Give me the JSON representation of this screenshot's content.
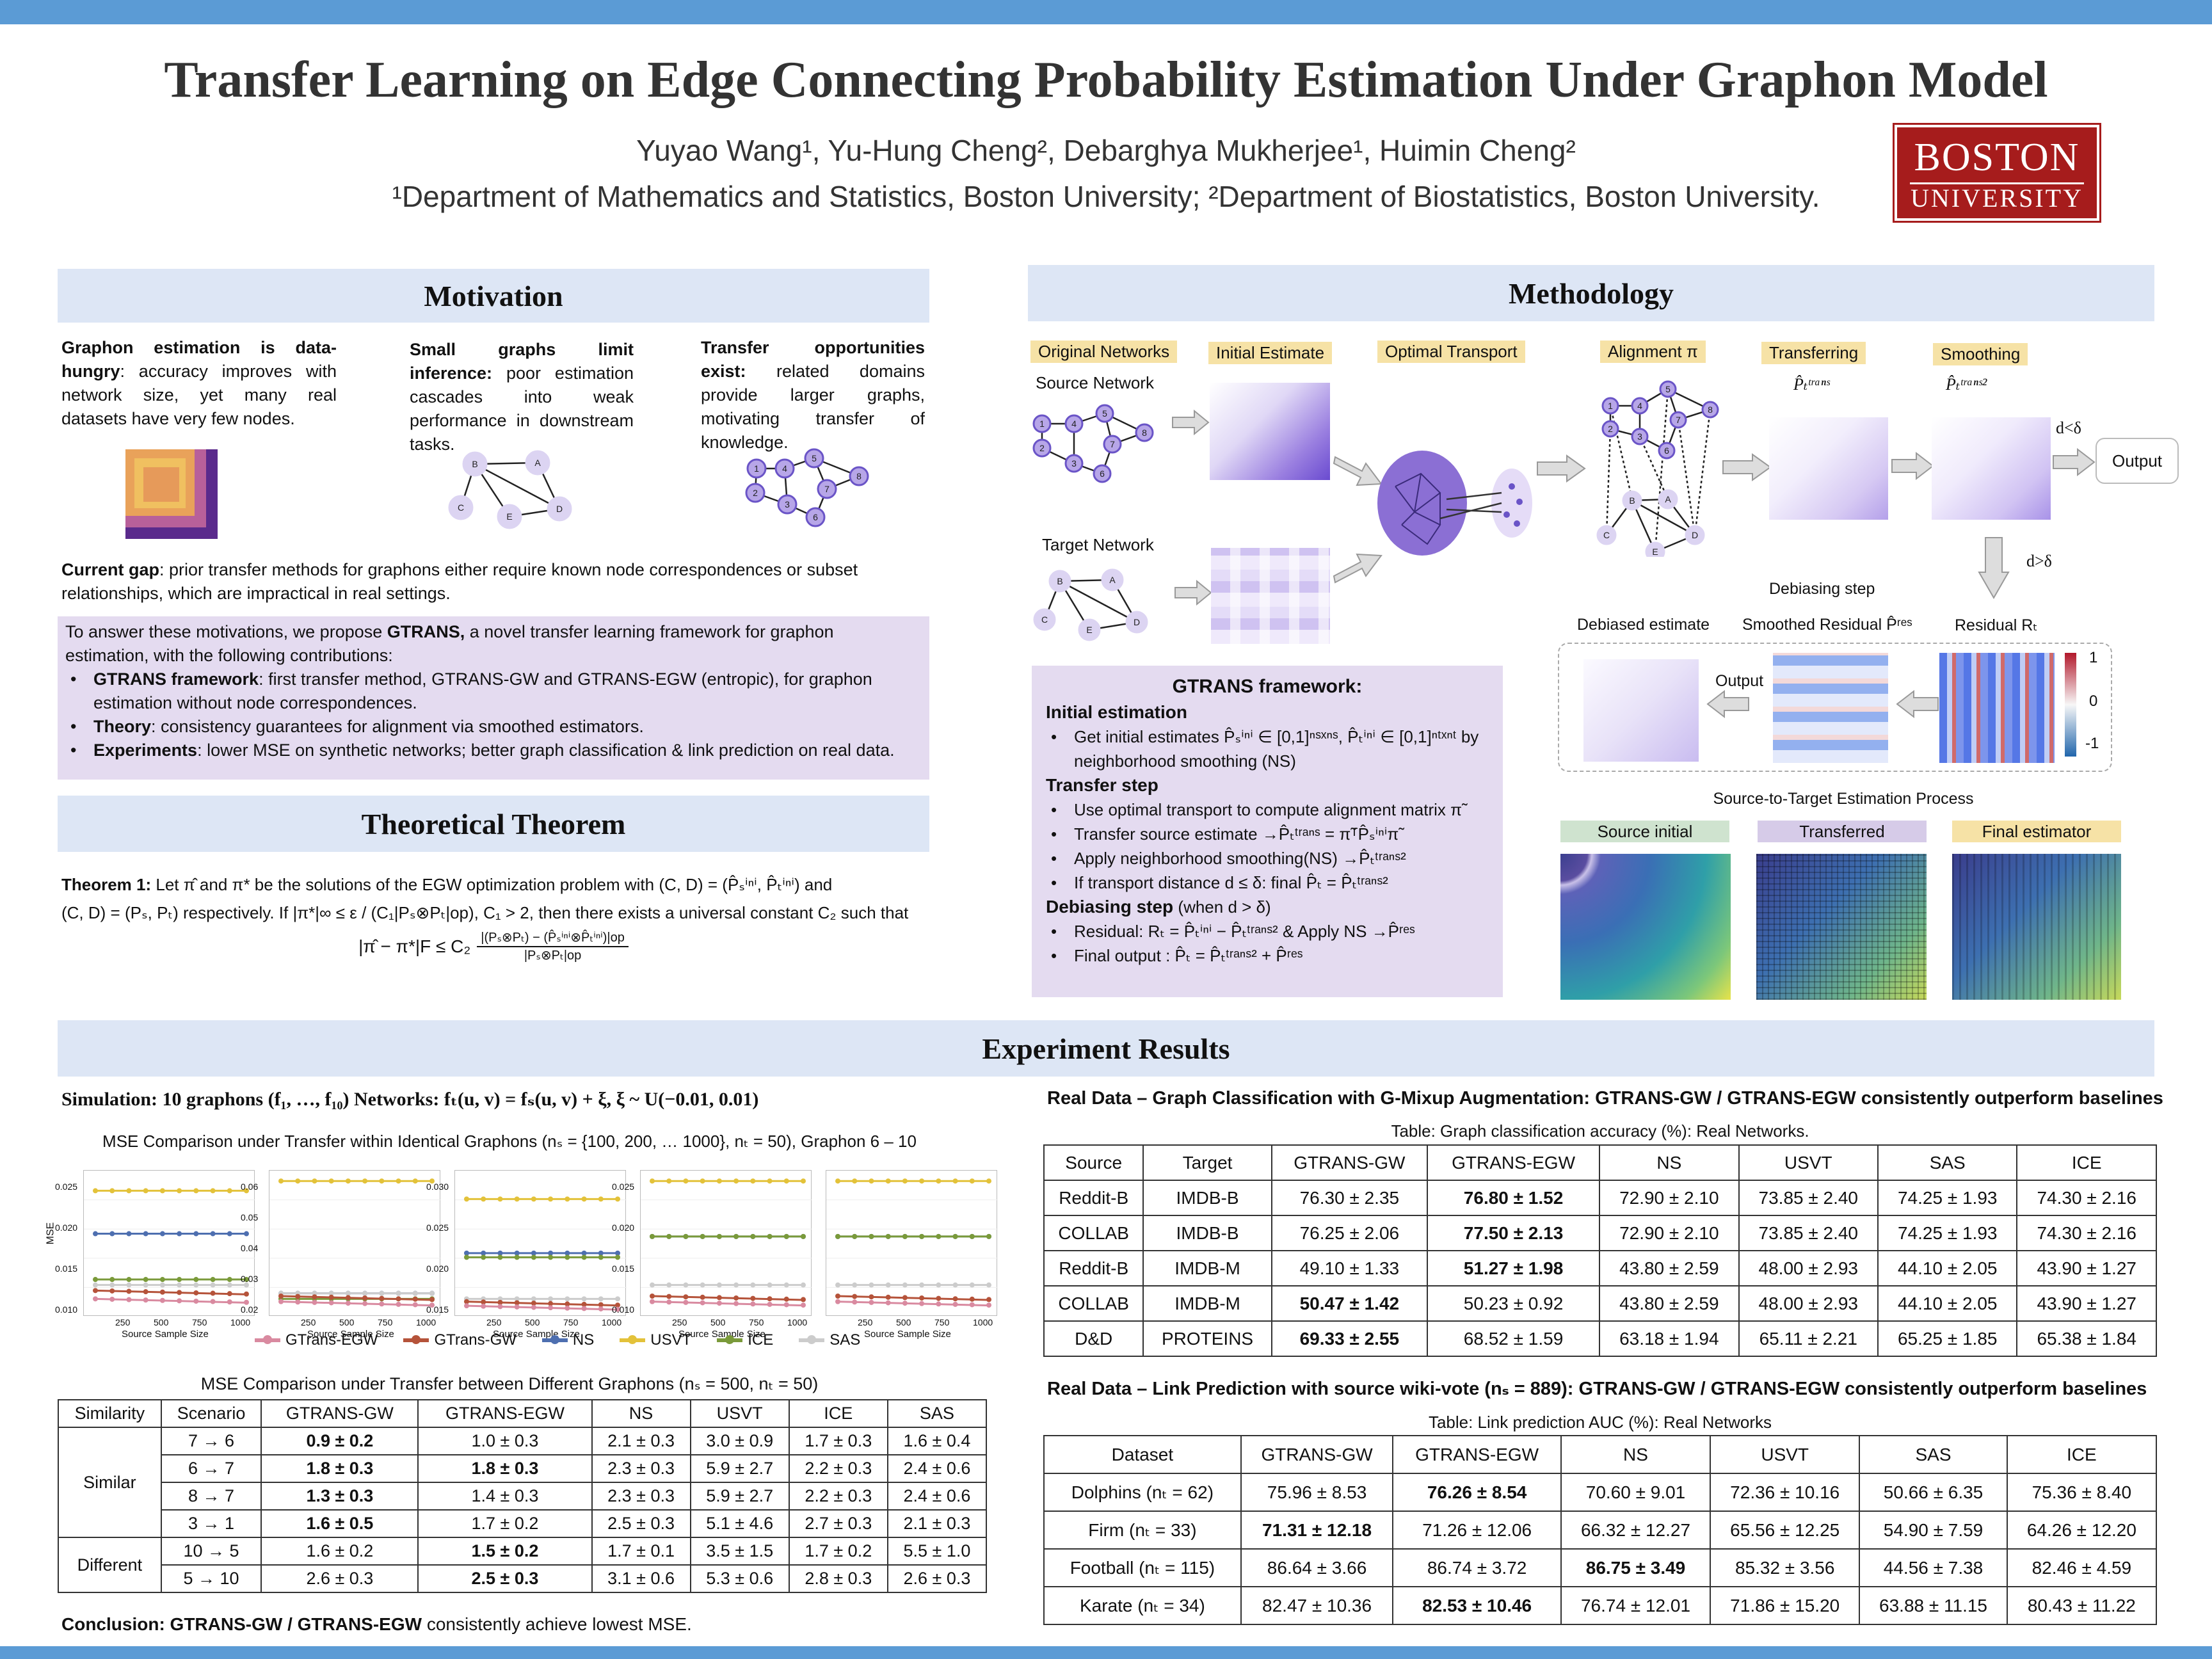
{
  "title": "Transfer Learning on Edge Connecting Probability Estimation Under Graphon Model",
  "authors": "Yuyao Wang¹, Yu-Hung Cheng², Debarghya Mukherjee¹, Huimin Cheng²",
  "affiliations": "¹Department of Mathematics and Statistics, Boston University; ²Department of Biostatistics, Boston University.",
  "logo": {
    "line1": "BOSTON",
    "line2": "UNIVERSITY"
  },
  "motivation": {
    "title": "Motivation",
    "col1_bold": "Graphon estimation is data-hungry",
    "col1_text": ": accuracy improves with network size, yet many real datasets have very few nodes.",
    "col2_bold": "Small graphs limit inference:",
    "col2_text": "poor estimation cascades into weak performance in downstream tasks.",
    "col3_bold": "Transfer opportunities exist:",
    "col3_text": "related domains provide larger graphs, motivating transfer of knowledge.",
    "gap_bold": "Current gap",
    "gap_text": ": prior transfer methods for graphons either require known node correspondences or subset relationships, which are impractical in real settings.",
    "box_intro1": "To answer these motivations, we propose ",
    "box_intro_bold": "GTRANS,",
    "box_intro2": " a novel transfer learning framework for graphon estimation, with the following contributions:",
    "b1_bold": "GTRANS framework",
    "b1_text": ": first transfer method, GTRANS-GW and GTRANS-EGW (entropic), for graphon estimation without node correspondences.",
    "b2_bold": "Theory",
    "b2_text": ": consistency guarantees for alignment via smoothed estimators.",
    "b3_bold": "Experiments",
    "b3_text": ": lower MSE on synthetic networks; better graph classification & link prediction on real data."
  },
  "theorem": {
    "title": "Theoretical Theorem",
    "label": "Theorem 1:",
    "line1": "Let π̂ and π* be the solutions of the EGW optimization problem with (C, D) = (P̂ₛⁱⁿⁱ, P̂ₜⁱⁿⁱ) and",
    "line2": "(C, D) = (Pₛ, Pₜ) respectively. If |π*|∞ ≤ ε / (C₁|Pₛ⊗Pₜ|op), C₁ > 2, then there exists a universal constant C₂ such that",
    "formula_lhs": "|π̂ − π*|F ≤ C₂",
    "formula_num": "|(Pₛ⊗Pₜ) − (P̂ₛⁱⁿⁱ⊗P̂ₜⁱⁿⁱ)|op",
    "formula_den": "|Pₛ⊗Pₜ|op"
  },
  "methodology": {
    "title": "Methodology",
    "labels": {
      "original": "Original Networks",
      "initial": "Initial Estimate",
      "ot": "Optimal Transport",
      "alignment": "Alignment π",
      "transferring": "Transferring",
      "smoothing": "Smoothing"
    },
    "source_network": "Source Network",
    "target_network": "Target Network",
    "p_trans": "P̂ₜᵗʳᵃⁿˢ",
    "p_trans2": "P̂ₜᵗʳᵃⁿˢ²",
    "d_less": "d<δ",
    "d_greater": "d>δ",
    "output": "Output",
    "output2": "Output",
    "debiasing_step": "Debiasing step",
    "debiased_estimate": "Debiased estimate",
    "smoothed_residual": "Smoothed Residual P̂ʳᵉˢ",
    "residual": "Residual Rₜ",
    "colorbar": [
      "1",
      "0",
      "-1"
    ],
    "framework_title": "GTRANS framework:",
    "init_title": "Initial estimation",
    "init_b1": "Get initial estimates P̂ₛⁱⁿⁱ ∈ [0,1]ⁿˢˣⁿˢ, P̂ₜⁱⁿⁱ ∈ [0,1]ⁿᵗˣⁿᵗ by neighborhood smoothing (NS)",
    "transfer_title": "Transfer step",
    "tr_b1": "Use optimal transport to compute alignment matrix π̃",
    "tr_b2": "Transfer source estimate →P̂ₜᵗʳᵃⁿˢ = π̃ᵀP̂ₛⁱⁿⁱπ̃",
    "tr_b3": "Apply neighborhood smoothing(NS) →P̂ₜᵗʳᵃⁿˢ²",
    "tr_b4": "If transport distance d ≤ δ: final P̂ₜ = P̂ₜᵗʳᵃⁿˢ²",
    "debias_title": "Debiasing step",
    "debias_cond": "(when d > δ)",
    "db_b1": "Residual: Rₜ = P̂ₜⁱⁿⁱ − P̂ₜᵗʳᵃⁿˢ² & Apply NS →P̂ʳᵉˢ",
    "db_b2": "Final output : P̂ₜ = P̂ₜᵗʳᵃⁿˢ² + P̂ʳᵉˢ",
    "process_title": "Source-to-Target Estimation Process",
    "proc_labels": [
      "Source initial",
      "Transferred",
      "Final estimator"
    ]
  },
  "experiments": {
    "title": "Experiment Results",
    "simulation": "Simulation: 10 graphons (f₁, …, f₁₀) Networks: fₜ(u, v) = fₛ(u, v) + ξ,   ξ ~ U(−0.01, 0.01)",
    "mse_title1": "MSE Comparison under Transfer within Identical Graphons (nₛ = {100, 200, … 1000}, nₜ = 50), Graphon 6 – 10",
    "legend": [
      "GTrans-EGW",
      "GTrans-GW",
      "NS",
      "USVT",
      "ICE",
      "SAS"
    ],
    "legend_colors": [
      "#d98aa0",
      "#b5533a",
      "#4e6fb0",
      "#e3c23a",
      "#7a9a3a",
      "#cccccc"
    ],
    "xlabel": "Source Sample Size",
    "ylabel": "MSE",
    "xticks": [
      "250",
      "500",
      "750",
      "1000"
    ],
    "panels_yticks": [
      [
        "0.025",
        "0.020",
        "0.015",
        "0.010"
      ],
      [
        "0.06",
        "0.05",
        "0.04",
        "0.03",
        "0.02"
      ],
      [
        "0.030",
        "0.025",
        "0.020",
        "0.015"
      ],
      [
        "0.025",
        "0.020",
        "0.015",
        "0.010"
      ],
      [
        "",
        "",
        "",
        ""
      ]
    ],
    "mse_title2": "MSE Comparison under Transfer between Different Graphons (nₛ = 500, nₜ = 50)",
    "table2_headers": [
      "Similarity",
      "Scenario",
      "GTRANS-GW",
      "GTRANS-EGW",
      "NS",
      "USVT",
      "ICE",
      "SAS"
    ],
    "table2_groups": [
      "Similar",
      "Different"
    ],
    "table2_rows": [
      [
        "7 → 6",
        "0.9 ± 0.2",
        "1.0 ± 0.3",
        "2.1 ± 0.3",
        "3.0 ± 0.9",
        "1.7 ± 0.3",
        "1.6 ± 0.4"
      ],
      [
        "6 → 7",
        "1.8 ± 0.3",
        "1.8 ± 0.3",
        "2.3 ± 0.3",
        "5.9 ± 2.7",
        "2.2 ± 0.3",
        "2.4 ± 0.6"
      ],
      [
        "8 → 7",
        "1.3 ± 0.3",
        "1.4 ± 0.3",
        "2.3 ± 0.3",
        "5.9 ± 2.7",
        "2.2 ± 0.3",
        "2.4 ± 0.6"
      ],
      [
        "3 → 1",
        "1.6 ± 0.5",
        "1.7 ± 0.2",
        "2.5 ± 0.3",
        "5.1 ± 4.6",
        "2.7 ± 0.3",
        "2.1 ± 0.3"
      ],
      [
        "10 → 5",
        "1.6 ± 0.2",
        "1.5 ± 0.2",
        "1.7 ± 0.1",
        "3.5 ± 1.5",
        "1.7 ± 0.2",
        "5.5 ± 1.0"
      ],
      [
        "5 → 10",
        "2.6 ± 0.3",
        "2.5 ± 0.3",
        "3.1 ± 0.6",
        "5.3 ± 0.6",
        "2.8 ± 0.3",
        "2.6 ± 0.3"
      ]
    ],
    "conclusion_bold": "Conclusion: GTRANS-GW / GTRANS-EGW",
    "conclusion_text": " consistently achieve lowest MSE.",
    "real1_title": "Real Data – Graph Classification with G-Mixup Augmentation: GTRANS-GW / GTRANS-EGW consistently outperform baselines",
    "table1_caption": "Table: Graph classification accuracy (%): Real Networks.",
    "table1_headers": [
      "Source",
      "Target",
      "GTRANS-GW",
      "GTRANS-EGW",
      "NS",
      "USVT",
      "SAS",
      "ICE"
    ],
    "table1_rows": [
      [
        "Reddit-B",
        "IMDB-B",
        "76.30 ± 2.35",
        "76.80 ± 1.52",
        "72.90 ± 2.10",
        "73.85 ± 2.40",
        "74.25 ± 1.93",
        "74.30 ± 2.16"
      ],
      [
        "COLLAB",
        "IMDB-B",
        "76.25 ± 2.06",
        "77.50 ± 2.13",
        "72.90 ± 2.10",
        "73.85 ± 2.40",
        "74.25 ± 1.93",
        "74.30 ± 2.16"
      ],
      [
        "Reddit-B",
        "IMDB-M",
        "49.10 ± 1.33",
        "51.27 ± 1.98",
        "43.80 ± 2.59",
        "48.00 ± 2.93",
        "44.10 ± 2.05",
        "43.90 ± 1.27"
      ],
      [
        "COLLAB",
        "IMDB-M",
        "50.47 ± 1.42",
        "50.23 ± 0.92",
        "43.80 ± 2.59",
        "48.00 ± 2.93",
        "44.10 ± 2.05",
        "43.90 ± 1.27"
      ],
      [
        "D&D",
        "PROTEINS",
        "69.33 ± 2.55",
        "68.52 ± 1.59",
        "63.18 ± 1.94",
        "65.11 ± 2.21",
        "65.25 ± 1.85",
        "65.38 ± 1.84"
      ]
    ],
    "real2_title": "Real Data – Link Prediction with source wiki-vote (nₛ = 889): GTRANS-GW / GTRANS-EGW consistently outperform baselines",
    "table3_caption": "Table: Link prediction AUC (%): Real Networks",
    "table3_headers": [
      "Dataset",
      "GTRANS-GW",
      "GTRANS-EGW",
      "NS",
      "USVT",
      "SAS",
      "ICE"
    ],
    "table3_rows": [
      [
        "Dolphins (nₜ = 62)",
        "75.96 ± 8.53",
        "76.26 ± 8.54",
        "70.60 ± 9.01",
        "72.36 ± 10.16",
        "50.66 ± 6.35",
        "75.36 ± 8.40"
      ],
      [
        "Firm (nₜ = 33)",
        "71.31 ± 12.18",
        "71.26 ± 12.06",
        "66.32 ± 12.27",
        "65.56 ± 12.25",
        "54.90 ± 7.59",
        "64.26 ± 12.20"
      ],
      [
        "Football (nₜ = 115)",
        "86.64 ± 3.66",
        "86.74 ± 3.72",
        "86.75 ± 3.49",
        "85.32 ± 3.56",
        "44.56 ± 7.38",
        "82.46 ± 4.59"
      ],
      [
        "Karate (nₜ = 34)",
        "82.47 ± 10.36",
        "82.53 ± 10.46",
        "76.74 ± 12.01",
        "71.86 ± 15.20",
        "63.88 ± 11.15",
        "80.43 ± 11.22"
      ]
    ]
  },
  "colors": {
    "accent_bar": "#5b9bd5",
    "section_bg": "#dde6f5",
    "purple_box": "#e4dbf0",
    "logo_red": "#a61c1c",
    "label_yellow": "#f6e2a6"
  }
}
